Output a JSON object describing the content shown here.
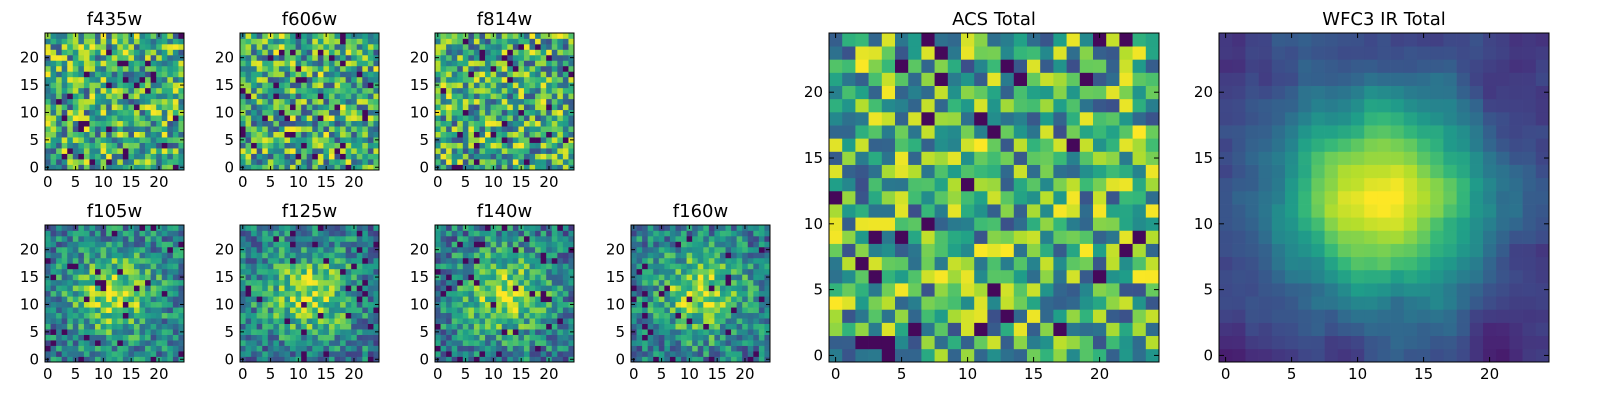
{
  "figure": {
    "panels": [
      {
        "id": "f435w",
        "title": "f435w",
        "size": "small",
        "xticks": [
          0,
          5,
          10,
          15,
          20
        ],
        "yticks": [
          0,
          5,
          10,
          15,
          20
        ]
      },
      {
        "id": "f606w",
        "title": "f606w",
        "size": "small",
        "xticks": [
          0,
          5,
          10,
          15,
          20
        ],
        "yticks": [
          0,
          5,
          10,
          15,
          20
        ]
      },
      {
        "id": "f814w",
        "title": "f814w",
        "size": "small",
        "xticks": [
          0,
          5,
          10,
          15,
          20
        ],
        "yticks": [
          0,
          5,
          10,
          15,
          20
        ]
      },
      {
        "id": "f105w",
        "title": "f105w",
        "size": "small",
        "xticks": [
          0,
          5,
          10,
          15,
          20
        ],
        "yticks": [
          0,
          5,
          10,
          15,
          20
        ]
      },
      {
        "id": "f125w",
        "title": "f125w",
        "size": "small",
        "xticks": [
          0,
          5,
          10,
          15,
          20
        ],
        "yticks": [
          0,
          5,
          10,
          15,
          20
        ]
      },
      {
        "id": "f140w",
        "title": "f140w",
        "size": "small",
        "xticks": [
          0,
          5,
          10,
          15,
          20
        ],
        "yticks": [
          0,
          5,
          10,
          15,
          20
        ]
      },
      {
        "id": "f160w",
        "title": "f160w",
        "size": "small",
        "xticks": [
          0,
          5,
          10,
          15,
          20
        ],
        "yticks": [
          0,
          5,
          10,
          15,
          20
        ]
      },
      {
        "id": "acs",
        "title": "ACS Total",
        "size": "large",
        "xticks": [
          0,
          5,
          10,
          15,
          20
        ],
        "yticks": [
          0,
          5,
          10,
          15,
          20
        ]
      },
      {
        "id": "wfc3",
        "title": "WFC3 IR Total",
        "size": "large",
        "xticks": [
          0,
          5,
          10,
          15,
          20
        ],
        "yticks": [
          0,
          5,
          10,
          15,
          20
        ]
      }
    ]
  },
  "chart_data": [
    {
      "type": "heatmap",
      "title": "f435w",
      "grid": [
        25,
        25
      ],
      "xlim": [
        -0.5,
        24.5
      ],
      "ylim": [
        -0.5,
        24.5
      ],
      "colormap": "viridis",
      "pattern": "noise",
      "peak": [
        12,
        12
      ],
      "seed": 11
    },
    {
      "type": "heatmap",
      "title": "f606w",
      "grid": [
        25,
        25
      ],
      "xlim": [
        -0.5,
        24.5
      ],
      "ylim": [
        -0.5,
        24.5
      ],
      "colormap": "viridis",
      "pattern": "noise",
      "peak": [
        12,
        12
      ],
      "seed": 23
    },
    {
      "type": "heatmap",
      "title": "f814w",
      "grid": [
        25,
        25
      ],
      "xlim": [
        -0.5,
        24.5
      ],
      "ylim": [
        -0.5,
        24.5
      ],
      "colormap": "viridis",
      "pattern": "noise",
      "peak": [
        12,
        12
      ],
      "seed": 37
    },
    {
      "type": "heatmap",
      "title": "f105w",
      "grid": [
        25,
        25
      ],
      "xlim": [
        -0.5,
        24.5
      ],
      "ylim": [
        -0.5,
        24.5
      ],
      "colormap": "viridis",
      "pattern": "source",
      "peak": [
        12,
        12
      ],
      "seed": 41
    },
    {
      "type": "heatmap",
      "title": "f125w",
      "grid": [
        25,
        25
      ],
      "xlim": [
        -0.5,
        24.5
      ],
      "ylim": [
        -0.5,
        24.5
      ],
      "colormap": "viridis",
      "pattern": "source",
      "peak": [
        12,
        12
      ],
      "seed": 53
    },
    {
      "type": "heatmap",
      "title": "f140w",
      "grid": [
        25,
        25
      ],
      "xlim": [
        -0.5,
        24.5
      ],
      "ylim": [
        -0.5,
        24.5
      ],
      "colormap": "viridis",
      "pattern": "source",
      "peak": [
        12,
        12
      ],
      "seed": 67
    },
    {
      "type": "heatmap",
      "title": "f160w",
      "grid": [
        25,
        25
      ],
      "xlim": [
        -0.5,
        24.5
      ],
      "ylim": [
        -0.5,
        24.5
      ],
      "colormap": "viridis",
      "pattern": "source",
      "peak": [
        12,
        12
      ],
      "seed": 79
    },
    {
      "type": "heatmap",
      "title": "ACS Total",
      "grid": [
        25,
        25
      ],
      "xlim": [
        -0.5,
        24.5
      ],
      "ylim": [
        -0.5,
        24.5
      ],
      "colormap": "viridis",
      "pattern": "noise",
      "peak": [
        12,
        12
      ],
      "seed": 97
    },
    {
      "type": "heatmap",
      "title": "WFC3 IR Total",
      "grid": [
        25,
        25
      ],
      "xlim": [
        -0.5,
        24.5
      ],
      "ylim": [
        -0.5,
        24.5
      ],
      "colormap": "viridis",
      "pattern": "smooth-source",
      "peak": [
        12,
        12
      ],
      "seed": 131
    }
  ]
}
